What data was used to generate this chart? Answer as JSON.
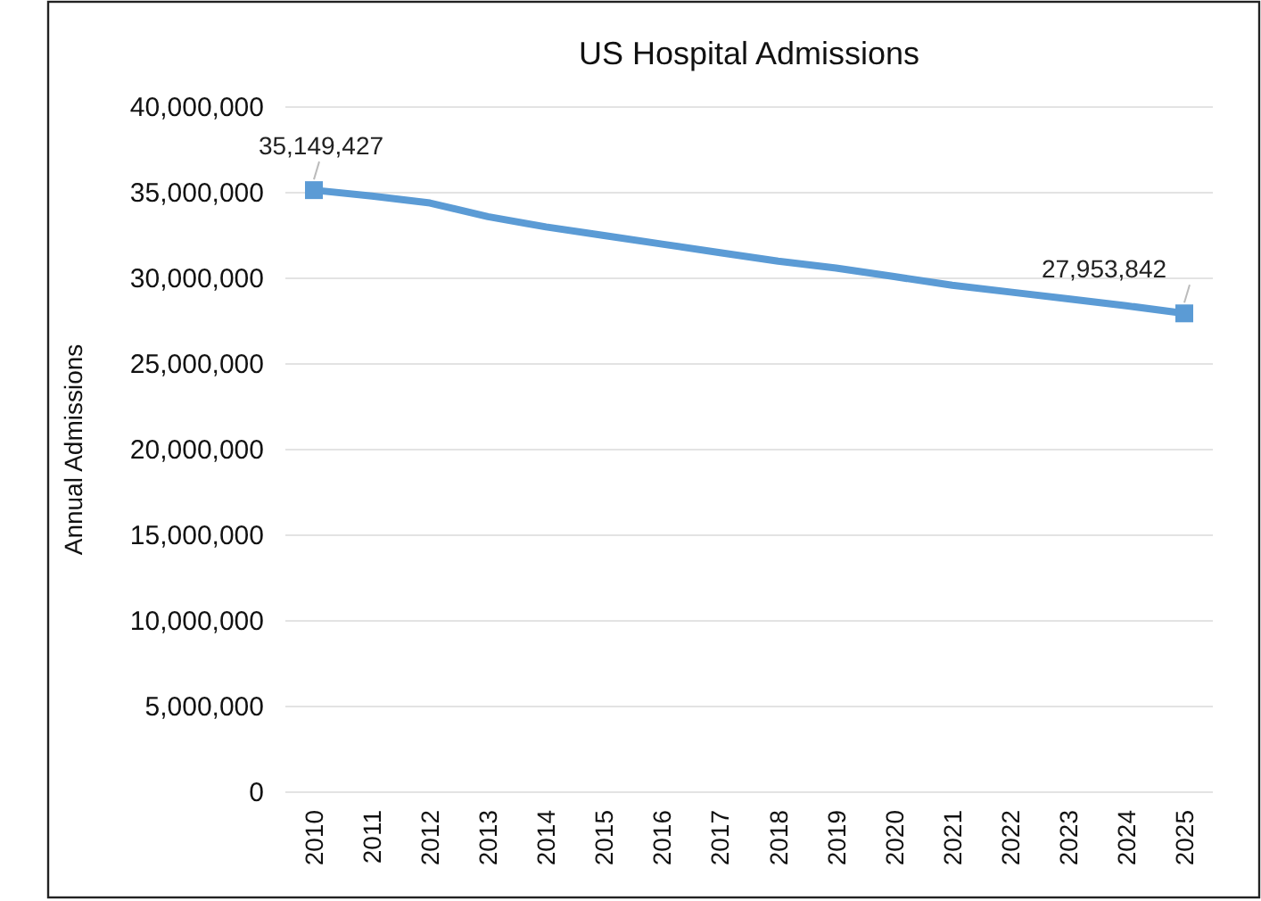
{
  "chart_data": {
    "type": "line",
    "title": "US Hospital Admissions",
    "ylabel": "Annual Admissions",
    "categories": [
      "2010",
      "2011",
      "2012",
      "2013",
      "2014",
      "2015",
      "2016",
      "2017",
      "2018",
      "2019",
      "2020",
      "2021",
      "2022",
      "2023",
      "2024",
      "2025"
    ],
    "series": [
      {
        "color": "#5b9bd5",
        "marker": "none",
        "values": [
          35149427,
          34800000,
          34400000,
          33600000,
          33000000,
          32500000,
          32000000,
          31500000,
          31000000,
          30600000,
          30100000,
          29600000,
          29200000,
          28800000,
          28400000,
          27953842
        ]
      },
      {
        "type": "scatter",
        "color": "#5b9bd5",
        "marker": "square",
        "values": [
          35149427,
          null,
          null,
          null,
          null,
          null,
          null,
          null,
          null,
          null,
          null,
          null,
          null,
          null,
          null,
          27953842
        ],
        "value_labels": [
          "35,149,427",
          null,
          null,
          null,
          null,
          null,
          null,
          null,
          null,
          null,
          null,
          null,
          null,
          null,
          null,
          "27,953,842"
        ]
      }
    ],
    "ylim": [
      0,
      40000000
    ],
    "yticks": [
      {
        "value": 0,
        "label": "0"
      },
      {
        "value": 5000000,
        "label": "5,000,000"
      },
      {
        "value": 10000000,
        "label": "10,000,000"
      },
      {
        "value": 15000000,
        "label": "15,000,000"
      },
      {
        "value": 20000000,
        "label": "20,000,000"
      },
      {
        "value": 25000000,
        "label": "25,000,000"
      },
      {
        "value": 30000000,
        "label": "30,000,000"
      },
      {
        "value": 35000000,
        "label": "35,000,000"
      },
      {
        "value": 40000000,
        "label": "40,000,000"
      }
    ],
    "grid": "y",
    "line_style": "solid"
  }
}
